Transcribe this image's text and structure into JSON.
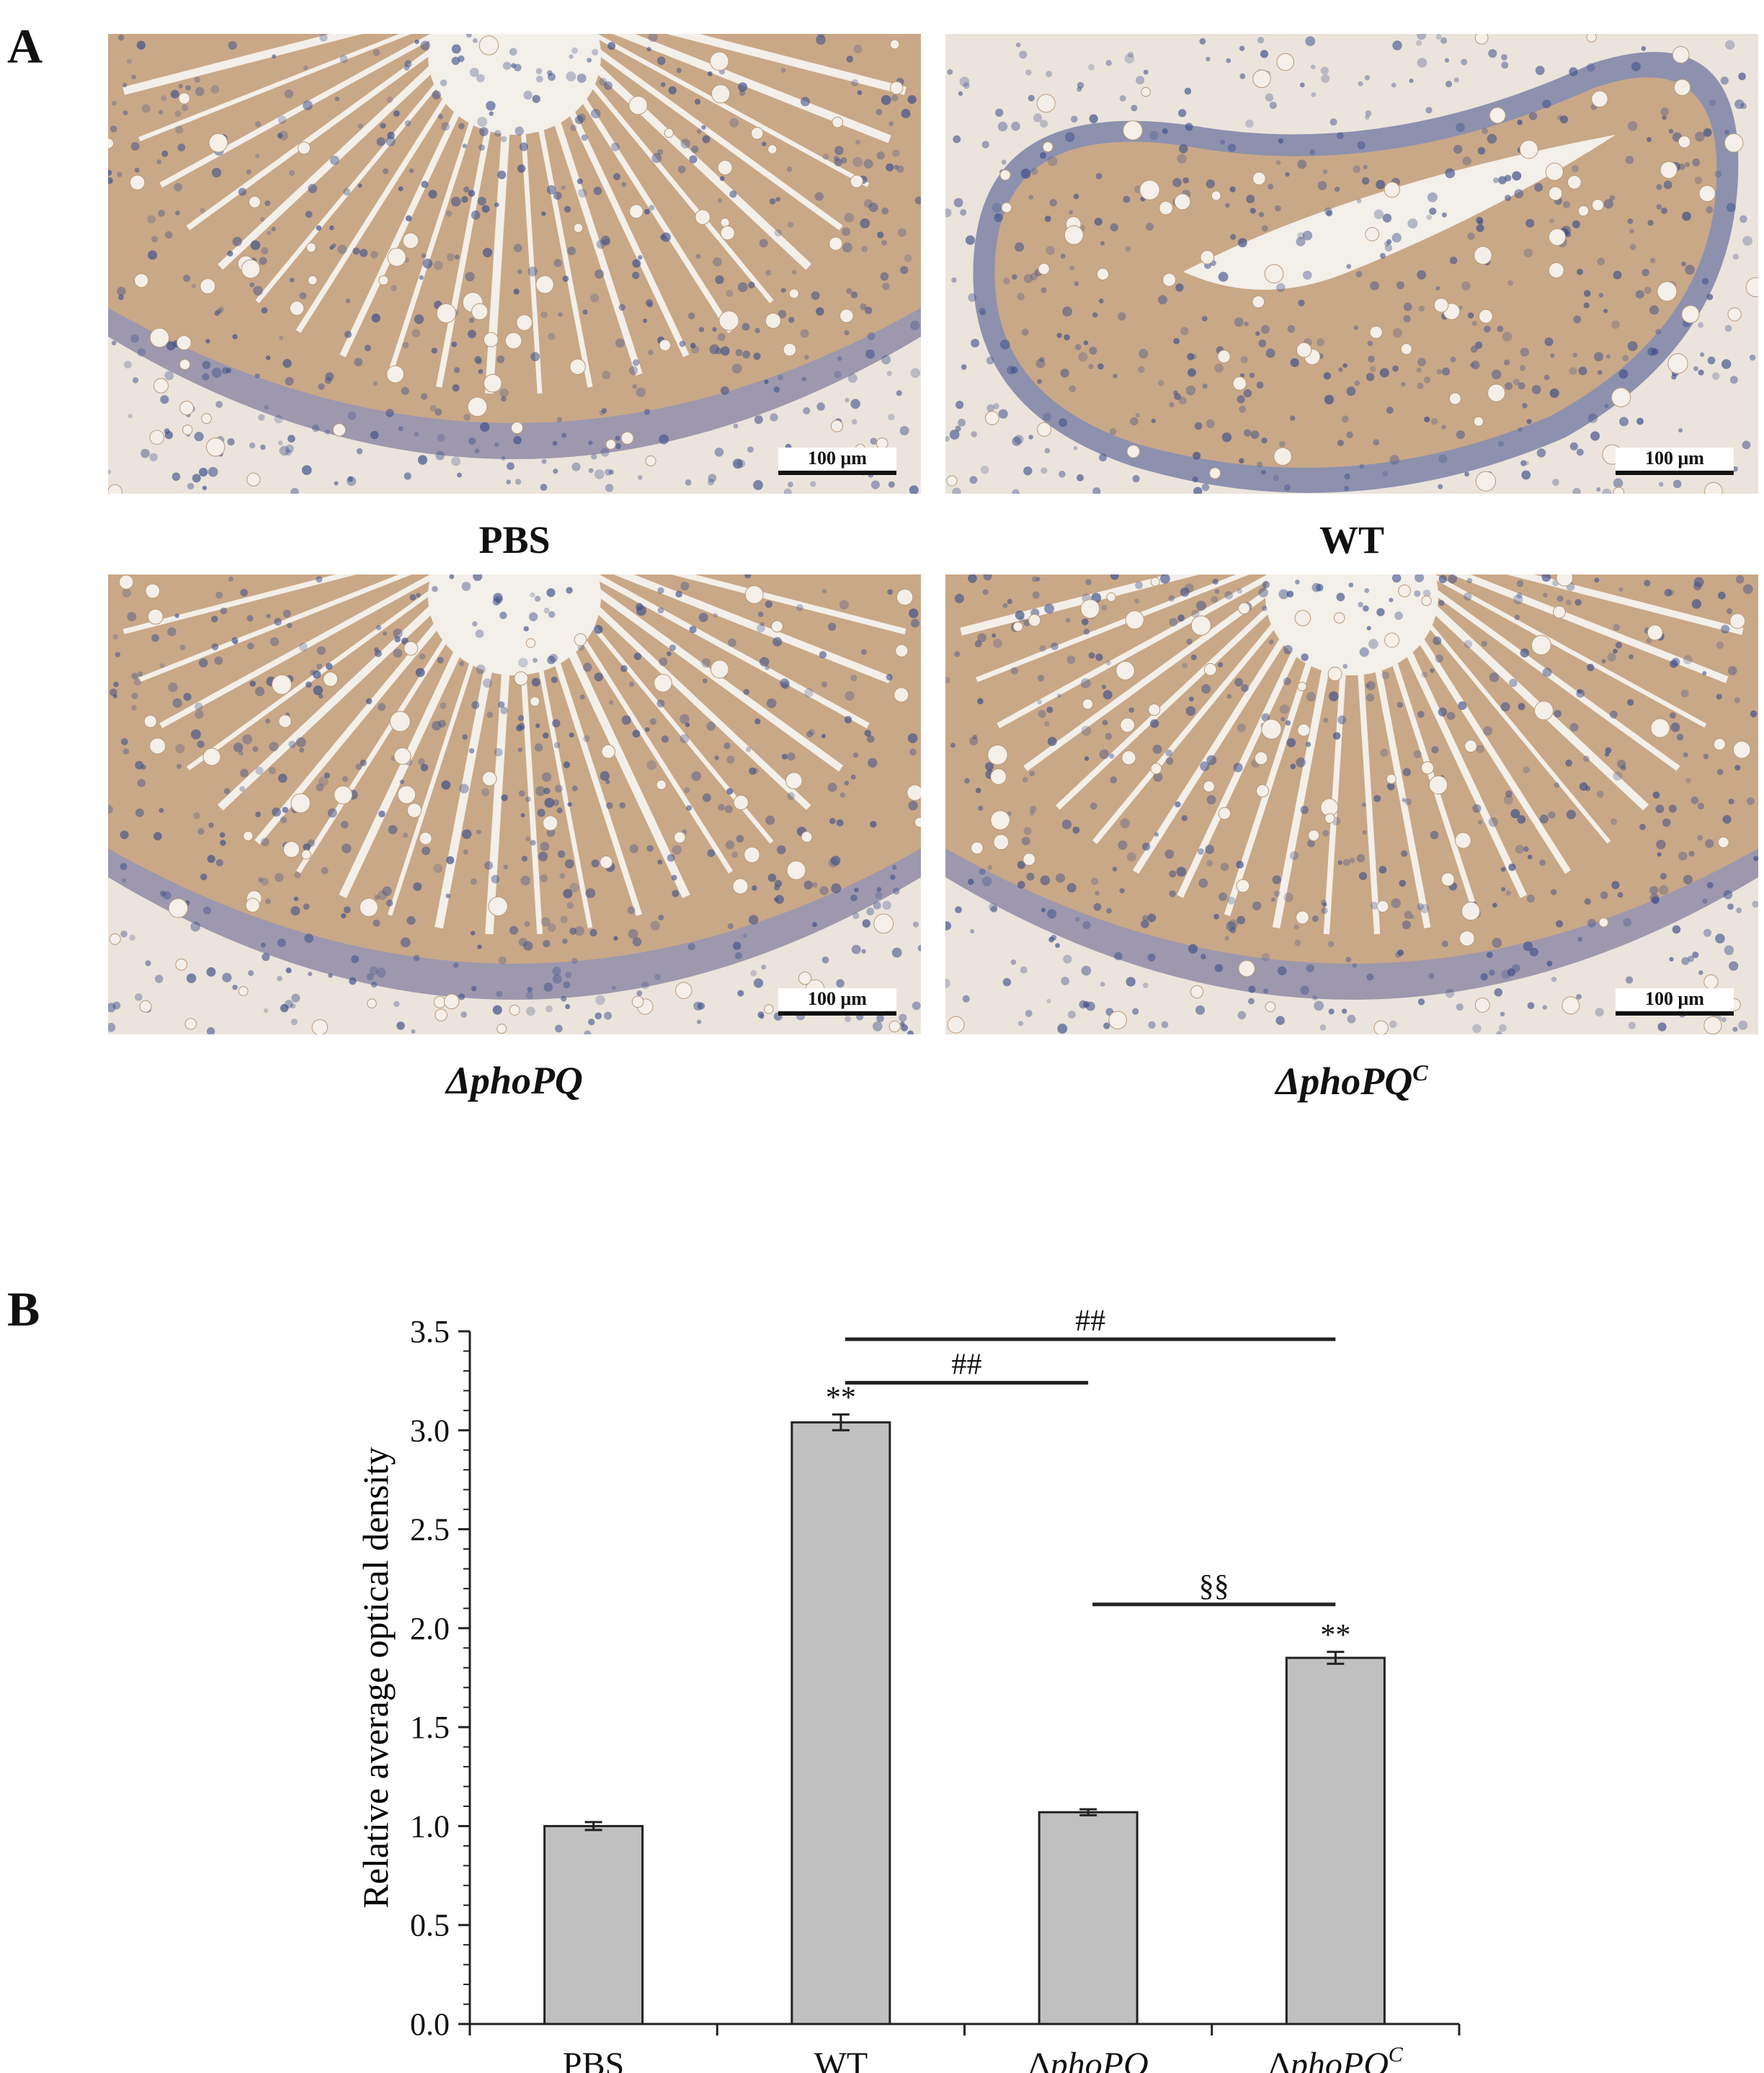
{
  "panel_a": {
    "letter": "A",
    "micrographs": [
      {
        "label": "PBS",
        "scale_text": "100 μm",
        "sup": ""
      },
      {
        "label": "WT",
        "scale_text": "100 μm",
        "sup": ""
      },
      {
        "label": "ΔphoPQ",
        "scale_text": "100 μm",
        "sup": ""
      },
      {
        "label": "ΔphoPQ",
        "scale_text": "100 μm",
        "sup": "C"
      }
    ],
    "colors": {
      "tissue": "#c9a887",
      "nuclei": "#3d4f8a",
      "background": "#ebe4dc",
      "lumen": "#f3efe9"
    }
  },
  "panel_b": {
    "letter": "B"
  },
  "chart_data": {
    "type": "bar",
    "categories": [
      "PBS",
      "WT",
      "ΔphoPQ",
      "ΔphoPQC"
    ],
    "category_labels": [
      {
        "prefix": "PBS",
        "italic": "",
        "sup": ""
      },
      {
        "prefix": "WT",
        "italic": "",
        "sup": ""
      },
      {
        "prefix": "Δ",
        "italic": "phoPQ",
        "sup": ""
      },
      {
        "prefix": "Δ",
        "italic": "phoPQ",
        "sup": "C"
      }
    ],
    "values": [
      1.0,
      3.04,
      1.07,
      1.85
    ],
    "errors": [
      0.02,
      0.04,
      0.015,
      0.03
    ],
    "bar_annotations": [
      "",
      "**",
      "",
      "**"
    ],
    "ylabel": "Relative average optical density",
    "ylim": [
      0,
      3.5
    ],
    "yticks": [
      "0.0",
      "0.5",
      "1.0",
      "1.5",
      "2.0",
      "2.5",
      "3.0",
      "3.5"
    ],
    "comparisons": [
      {
        "from": 1,
        "to": 3,
        "label": "##"
      },
      {
        "from": 1,
        "to": 2,
        "label": "##"
      },
      {
        "from": 2,
        "to": 3,
        "label": "§§"
      }
    ],
    "bar_color": "#c0c0c0",
    "edge_color": "#222222",
    "grid": false
  }
}
